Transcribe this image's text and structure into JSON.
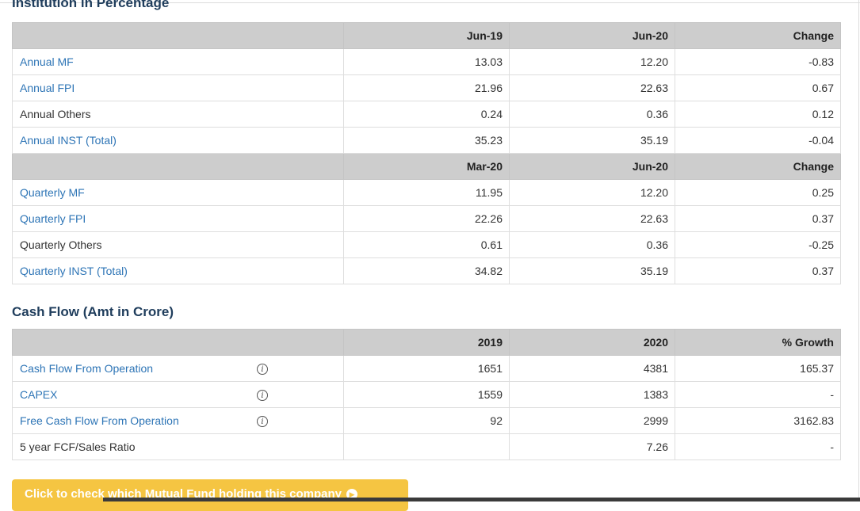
{
  "institution": {
    "title": "Institution in Percentage",
    "annual_header": [
      "",
      "Jun-19",
      "Jun-20",
      "Change"
    ],
    "annual_rows": [
      {
        "label": "Annual MF",
        "v1": "13.03",
        "v2": "12.20",
        "change": "-0.83",
        "link": true
      },
      {
        "label": "Annual FPI",
        "v1": "21.96",
        "v2": "22.63",
        "change": "0.67",
        "link": true
      },
      {
        "label": "Annual Others",
        "v1": "0.24",
        "v2": "0.36",
        "change": "0.12",
        "link": false
      },
      {
        "label": "Annual INST (Total)",
        "v1": "35.23",
        "v2": "35.19",
        "change": "-0.04",
        "link": true
      }
    ],
    "quarterly_header": [
      "",
      "Mar-20",
      "Jun-20",
      "Change"
    ],
    "quarterly_rows": [
      {
        "label": "Quarterly MF",
        "v1": "11.95",
        "v2": "12.20",
        "change": "0.25",
        "link": true
      },
      {
        "label": "Quarterly FPI",
        "v1": "22.26",
        "v2": "22.63",
        "change": "0.37",
        "link": true
      },
      {
        "label": "Quarterly Others",
        "v1": "0.61",
        "v2": "0.36",
        "change": "-0.25",
        "link": false
      },
      {
        "label": "Quarterly INST (Total)",
        "v1": "34.82",
        "v2": "35.19",
        "change": "0.37",
        "link": true
      }
    ]
  },
  "cash_flow": {
    "title": "Cash Flow (Amt in Crore)",
    "header": [
      "",
      "2019",
      "2020",
      "% Growth"
    ],
    "rows": [
      {
        "label": "Cash Flow From Operation",
        "info": true,
        "v1": "1651",
        "v2": "4381",
        "growth": "165.37",
        "link": true
      },
      {
        "label": "CAPEX",
        "info": true,
        "v1": "1559",
        "v2": "1383",
        "growth": "-",
        "link": true
      },
      {
        "label": "Free Cash Flow From Operation",
        "info": true,
        "v1": "92",
        "v2": "2999",
        "growth": "3162.83",
        "link": true
      },
      {
        "label": "5 year FCF/Sales Ratio",
        "info": false,
        "v1": "",
        "v2": "7.26",
        "growth": "-",
        "link": false
      }
    ],
    "info_icon": "info-icon"
  },
  "mf_button": {
    "label": "Click to check which Mutual Fund holding this company",
    "icon": "play-circle-icon"
  },
  "colors": {
    "link": "#2e75b6",
    "header_bg": "#cdcdcd",
    "title": "#1f3d5c",
    "button": "#f5c542"
  }
}
